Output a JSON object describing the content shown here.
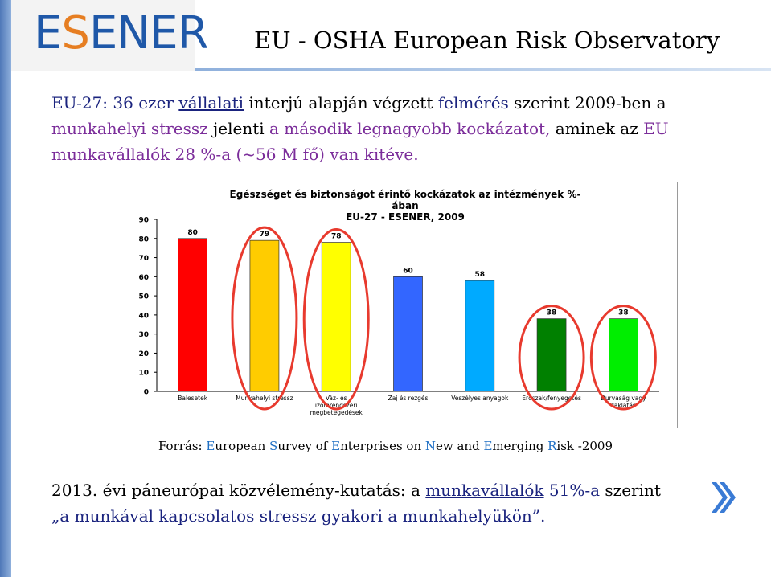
{
  "logo": {
    "part1": "E",
    "part2": "S",
    "part3": "ENER"
  },
  "title": "EU - OSHA European Risk Observatory",
  "intro": {
    "t1": "EU-27: 36 ezer",
    "t2": "vállalati",
    "t3": " interjú alapján végzett ",
    "t4": "felmérés",
    "t5": " szerint 2009-ben a ",
    "t6": "munkahelyi stressz",
    "t7": " jelenti ",
    "t8": "a második legnagyobb kockázatot,",
    "t9": " aminek az ",
    "t10": "EU munkavállalók 28 %-a (~56 M fő) van kitéve."
  },
  "chart_data": {
    "type": "bar",
    "title": "Egészséget és biztonságot érintő kockázatok az intézmények %-ában",
    "subtitle": "EU-27 - ESENER, 2009",
    "categories": [
      "Balesetek",
      "Munkahelyi stressz",
      "Váz- és izomrendszeri megbetegedések",
      "Zaj és rezgés",
      "Veszélyes anyagok",
      "Erőszak/fenyegetés",
      "Durvaság vagy zaklatás"
    ],
    "category_lines": [
      [
        "Balesetek"
      ],
      [
        "Munkahelyi stressz"
      ],
      [
        "Váz- és",
        "izomrendszeri",
        "megbetegedések"
      ],
      [
        "Zaj és rezgés"
      ],
      [
        "Veszélyes anyagok"
      ],
      [
        "Erőszak/fenyegetés"
      ],
      [
        "Durvaság vagy",
        "zaklatás"
      ]
    ],
    "values": [
      80,
      79,
      78,
      60,
      58,
      38,
      38
    ],
    "colors": [
      "#ff0000",
      "#ffcc00",
      "#ffff00",
      "#3366ff",
      "#00aaff",
      "#008000",
      "#00ee00"
    ],
    "circled": [
      1,
      2,
      5,
      6
    ],
    "circle_color": "#e83a2e",
    "ylim": [
      0,
      90
    ],
    "yticks": [
      0,
      10,
      20,
      30,
      40,
      50,
      60,
      70,
      80,
      90
    ],
    "grid": false,
    "legend": "none"
  },
  "source": {
    "prefix": "Forrás: ",
    "parts": [
      {
        "hl": "E",
        "rest": "uropean "
      },
      {
        "hl": "S",
        "rest": "urvey of "
      },
      {
        "hl": "E",
        "rest": "nterprises on "
      },
      {
        "hl": "N",
        "rest": "ew and "
      },
      {
        "hl": "E",
        "rest": "merging "
      },
      {
        "hl": "R",
        "rest": "isk -2009"
      }
    ]
  },
  "bottom": {
    "b1": "2013. évi páneurópai közvélemény-kutatás: a ",
    "b2": "munkavállalók",
    "b3": " 51%-a",
    "b4": "  szerint",
    "b5": "„a munkával kapcsolatos stressz gyakori  a munkahelyükön”."
  },
  "icons": {
    "next": "double-chevron-right-icon"
  },
  "colors": {
    "accent_blue": "#1f58a8",
    "navy": "#1a237e",
    "purple": "#7b2d9a",
    "circle": "#e83a2e"
  }
}
